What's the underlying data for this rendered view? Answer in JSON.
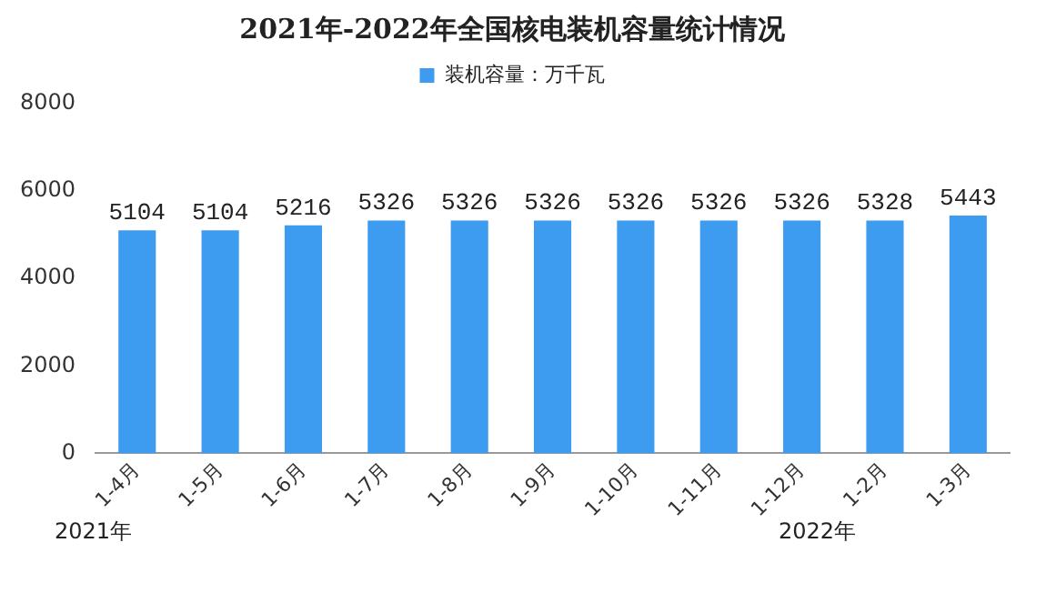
{
  "chart_data": {
    "type": "bar",
    "title": "2021年-2022年全国核电装机容量统计情况",
    "categories": [
      "1-4月",
      "1-5月",
      "1-6月",
      "1-7月",
      "1-8月",
      "1-9月",
      "1-10月",
      "1-11月",
      "1-12月",
      "1-2月",
      "1-3月"
    ],
    "series": [
      {
        "name": "装机容量：万千瓦",
        "color": "#3d9bf0",
        "values": [
          5104,
          5104,
          5216,
          5326,
          5326,
          5326,
          5326,
          5326,
          5326,
          5328,
          5443
        ]
      }
    ],
    "ylim": [
      0,
      8000
    ],
    "yticks": [
      0,
      2000,
      4000,
      6000,
      8000
    ],
    "grid": false,
    "legend": "top",
    "data_labels": true,
    "annotations": [
      "2021年",
      "2022年"
    ]
  }
}
